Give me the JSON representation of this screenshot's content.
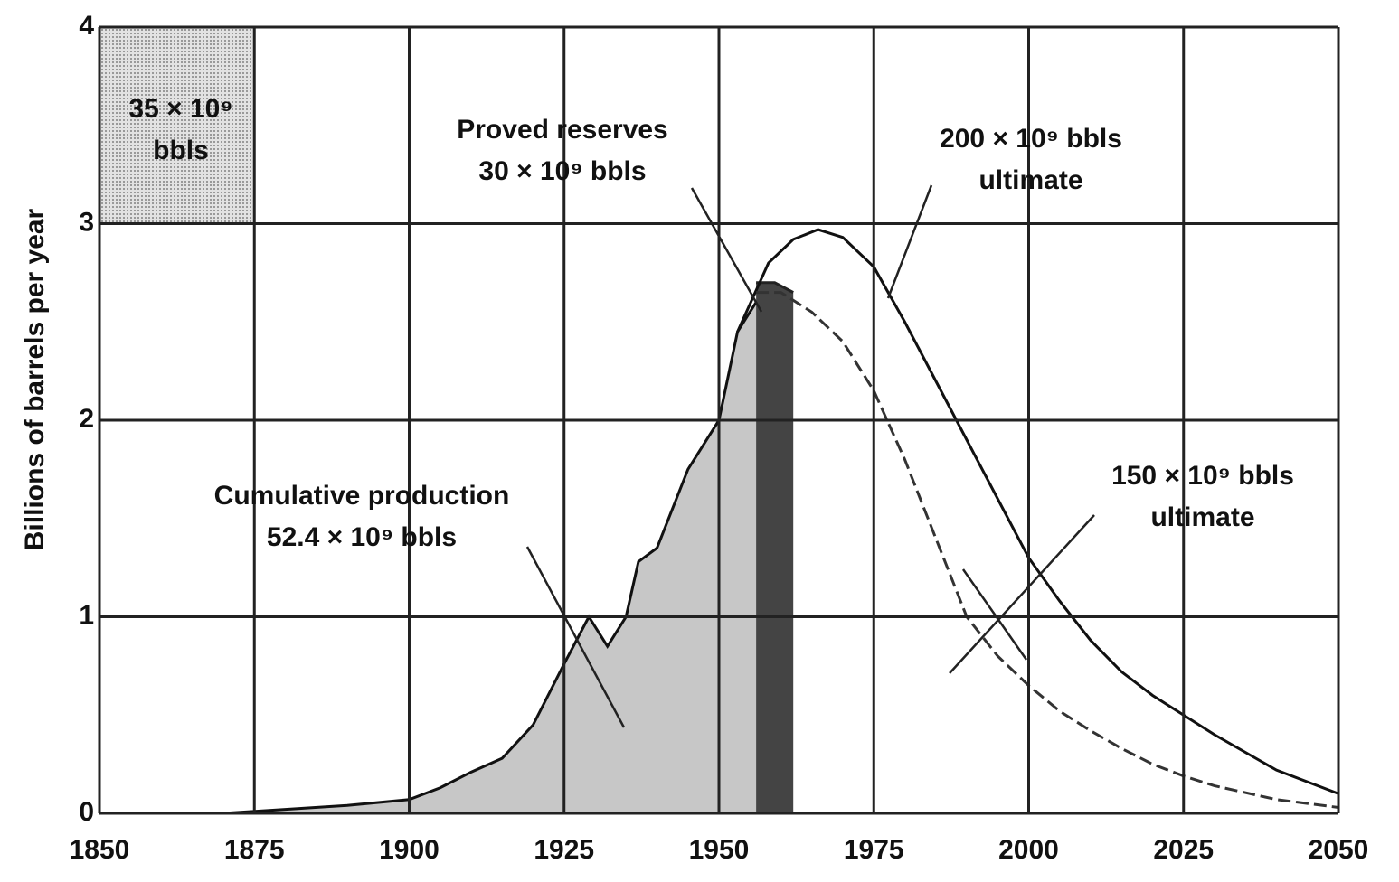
{
  "chart_data": {
    "type": "line",
    "y_label": "Billions of barrels per year",
    "xlim": [
      1850,
      2050
    ],
    "xticks": [
      1850,
      1875,
      1900,
      1925,
      1950,
      1975,
      2000,
      2025,
      2050
    ],
    "ylim": [
      0,
      4
    ],
    "yticks": [
      0,
      1,
      2,
      3,
      4
    ],
    "grid": true,
    "series": [
      {
        "color": "#111111",
        "fill": "#c4c4c4",
        "line_style": "solid",
        "x": [
          1870,
          1880,
          1890,
          1900,
          1905,
          1910,
          1915,
          1920,
          1925,
          1929,
          1932,
          1935,
          1937,
          1940,
          1945,
          1950,
          1953,
          1956
        ],
        "values": [
          0.0,
          0.02,
          0.04,
          0.07,
          0.13,
          0.21,
          0.28,
          0.45,
          0.76,
          1.0,
          0.85,
          1.0,
          1.28,
          1.35,
          1.75,
          2.0,
          2.45,
          2.6
        ]
      },
      {
        "color": "#222222",
        "fill": "#3a3a3a",
        "line_style": "solid",
        "x": [
          1956,
          1959,
          1962
        ],
        "values": [
          2.7,
          2.7,
          2.65
        ]
      },
      {
        "color": "#111111",
        "line_style": "solid",
        "x": [
          1953,
          1958,
          1962,
          1966,
          1970,
          1975,
          1980,
          1985,
          1990,
          1995,
          2000,
          2005,
          2010,
          2015,
          2020,
          2025,
          2030,
          2040,
          2050
        ],
        "values": [
          2.45,
          2.8,
          2.92,
          2.97,
          2.93,
          2.78,
          2.5,
          2.2,
          1.9,
          1.6,
          1.3,
          1.08,
          0.88,
          0.72,
          0.6,
          0.5,
          0.4,
          0.22,
          0.1
        ]
      },
      {
        "color": "#333333",
        "line_style": "dashed",
        "x": [
          1956,
          1960,
          1965,
          1970,
          1975,
          1980,
          1985,
          1990,
          1995,
          2000,
          2005,
          2010,
          2015,
          2020,
          2025,
          2030,
          2040,
          2050
        ],
        "values": [
          2.65,
          2.65,
          2.55,
          2.4,
          2.15,
          1.8,
          1.4,
          1.0,
          0.8,
          0.65,
          0.52,
          0.42,
          0.33,
          0.25,
          0.19,
          0.14,
          0.07,
          0.03
        ]
      }
    ],
    "annotations": [
      [
        "35 × 10⁹",
        "bbls"
      ],
      [
        "Proved reserves",
        "30 × 10⁹ bbls"
      ],
      [
        "200 × 10⁹ bbls",
        "ultimate"
      ],
      [
        "150 × 10⁹ bbls",
        "ultimate"
      ],
      [
        "Cumulative production",
        "52.4 × 10⁹ bbls"
      ]
    ]
  }
}
